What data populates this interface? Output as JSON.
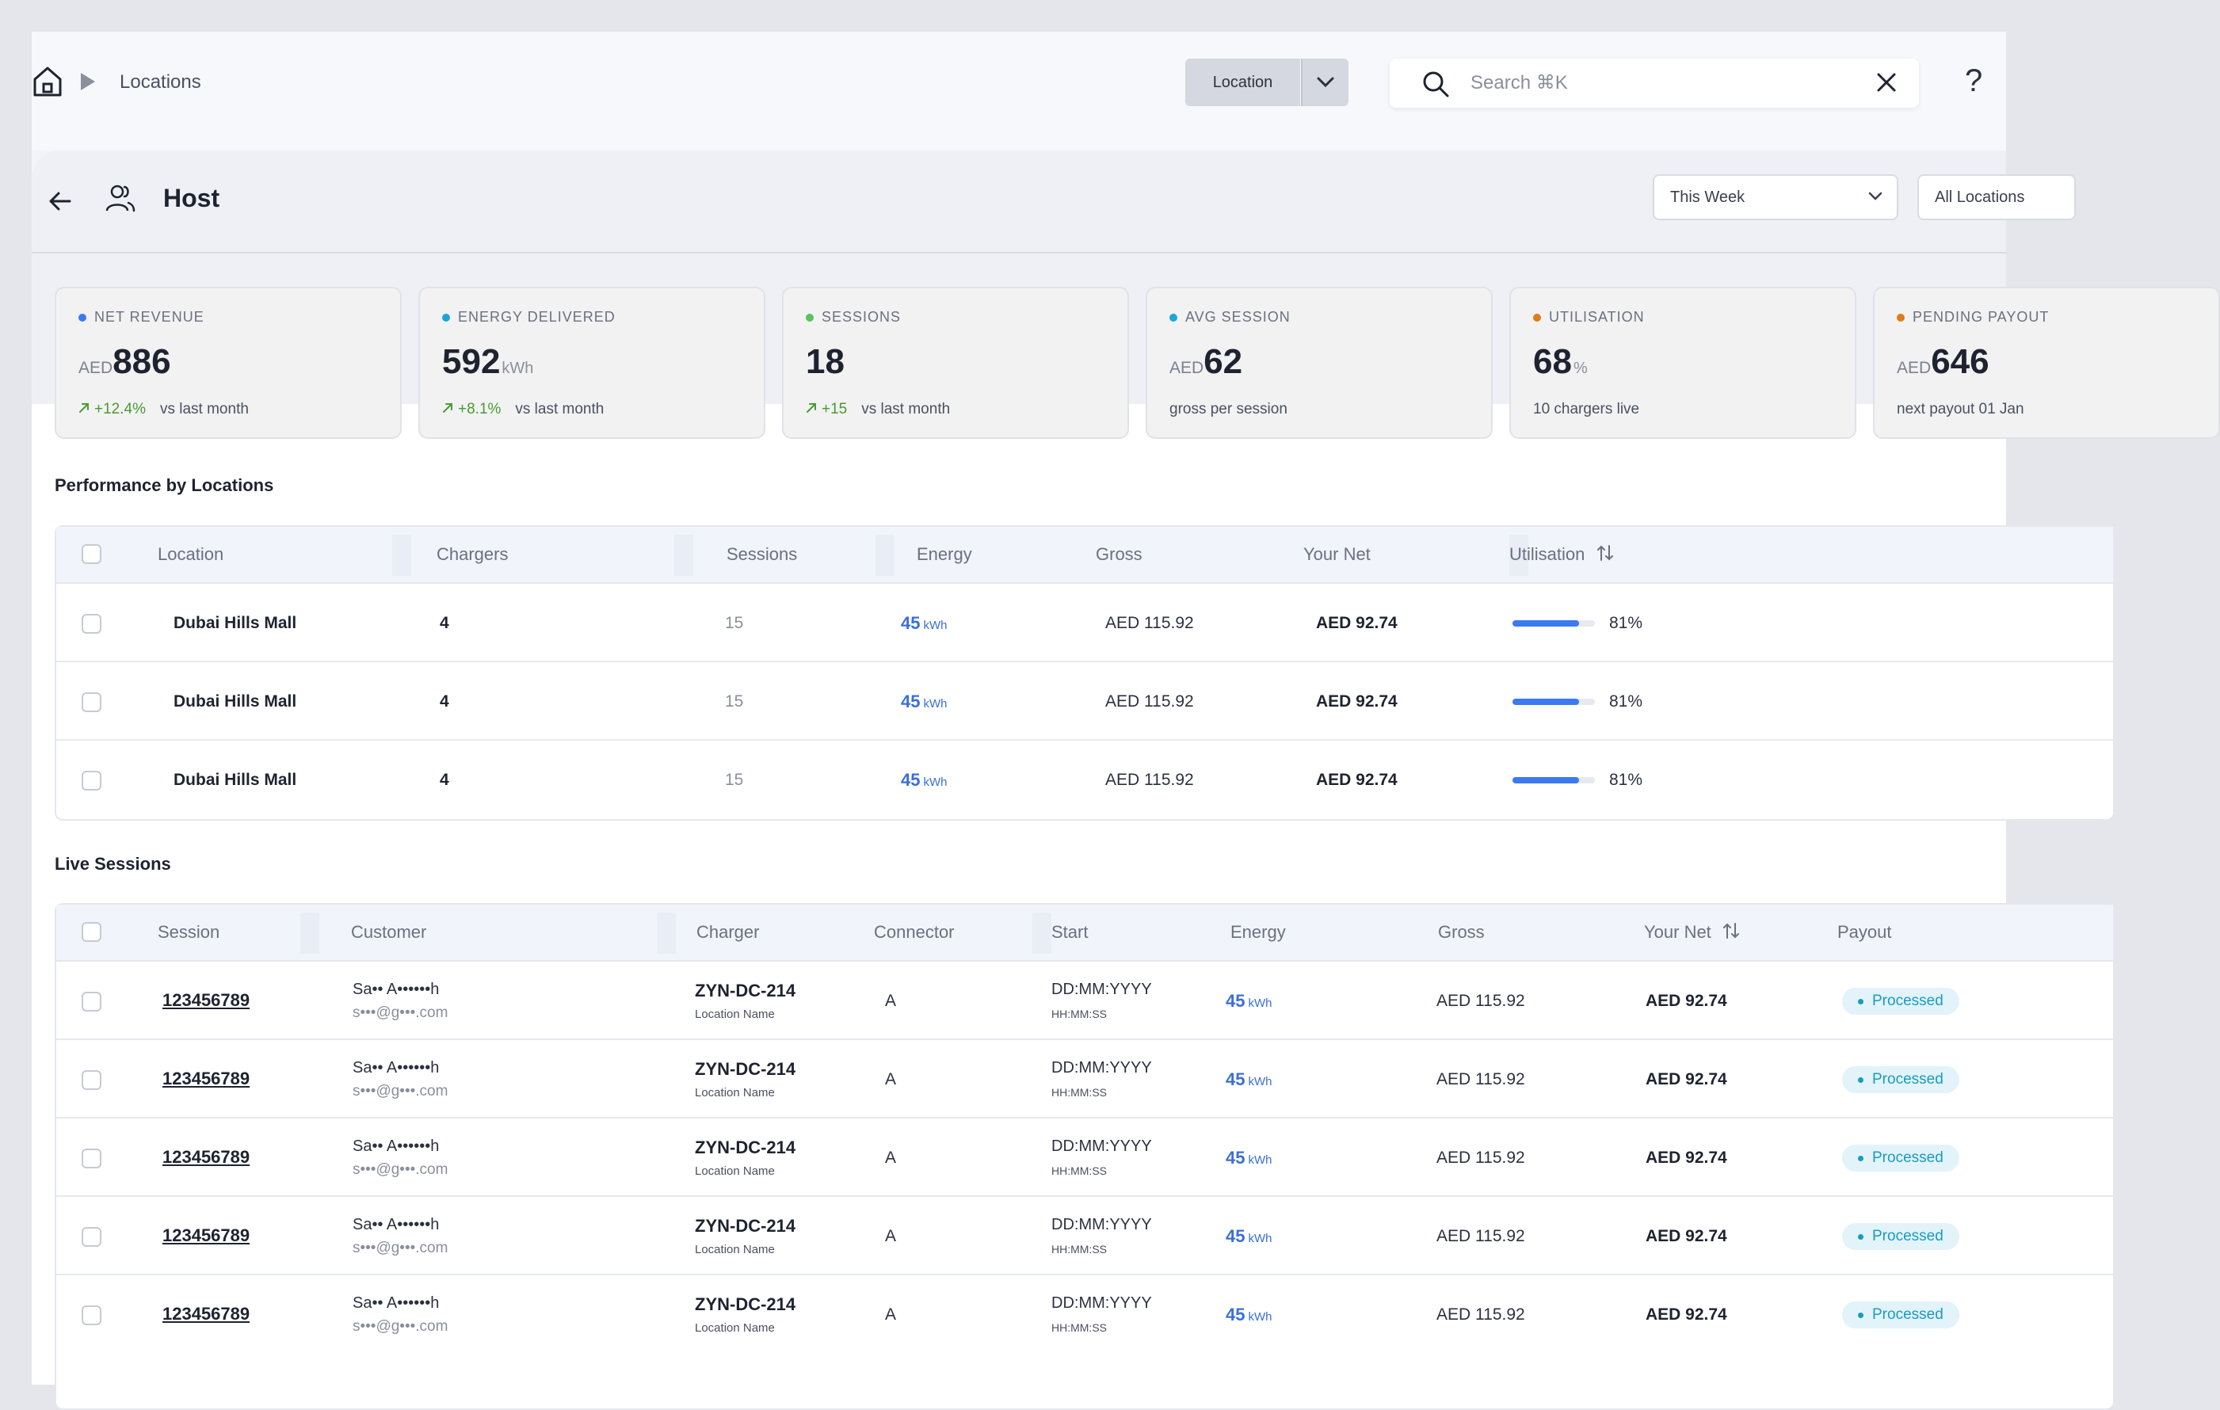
{
  "breadcrumb": {
    "current": "Locations"
  },
  "location_filter": {
    "label": "Location"
  },
  "search": {
    "placeholder": "Search ⌘K"
  },
  "help": {
    "label": "?"
  },
  "host": {
    "title": "Host",
    "period": "This Week",
    "locations_filter": "All Locations"
  },
  "cards": [
    {
      "label": "NET REVENUE",
      "dot": "#3b7af0",
      "prefix": "AED",
      "value": "886",
      "suffix": "",
      "delta": "+12.4%",
      "note": "vs last month"
    },
    {
      "label": "ENERGY DELIVERED",
      "dot": "#1aa7d6",
      "prefix": "",
      "value": "592",
      "suffix": "kWh",
      "delta": "+8.1%",
      "note": "vs last month"
    },
    {
      "label": "SESSIONS",
      "dot": "#5cc25a",
      "prefix": "",
      "value": "18",
      "suffix": "",
      "delta": "+15",
      "note": "vs last month"
    },
    {
      "label": "AVG SESSION",
      "dot": "#1aa7d6",
      "prefix": "AED",
      "value": "62",
      "suffix": "",
      "delta": "",
      "note": "gross per session"
    },
    {
      "label": "UTILISATION",
      "dot": "#e07a1a",
      "prefix": "",
      "value": "68",
      "suffix": "%",
      "delta": "",
      "note": "10 chargers live"
    },
    {
      "label": "PENDING PAYOUT",
      "dot": "#e07a1a",
      "prefix": "AED",
      "value": "646",
      "suffix": "",
      "delta": "",
      "note": "next payout 01 Jan"
    }
  ],
  "performance": {
    "title": "Performance by Locations",
    "columns": [
      "Location",
      "Chargers",
      "Sessions",
      "Energy",
      "Gross",
      "Your Net",
      "Utilisation"
    ],
    "rows": [
      {
        "location": "Dubai Hills Mall",
        "chargers": "4",
        "sessions": "15",
        "energy": "45",
        "energy_unit": "kWh",
        "gross": "AED 115.92",
        "net": "AED 92.74",
        "utilisation_pct": 81,
        "utilisation": "81%"
      },
      {
        "location": "Dubai Hills Mall",
        "chargers": "4",
        "sessions": "15",
        "energy": "45",
        "energy_unit": "kWh",
        "gross": "AED 115.92",
        "net": "AED 92.74",
        "utilisation_pct": 81,
        "utilisation": "81%"
      },
      {
        "location": "Dubai Hills Mall",
        "chargers": "4",
        "sessions": "15",
        "energy": "45",
        "energy_unit": "kWh",
        "gross": "AED 115.92",
        "net": "AED 92.74",
        "utilisation_pct": 81,
        "utilisation": "81%"
      }
    ]
  },
  "live": {
    "title": "Live Sessions",
    "columns": [
      "Session",
      "Customer",
      "Charger",
      "Connector",
      "Start",
      "Energy",
      "Gross",
      "Your Net",
      "Payout"
    ],
    "rows": [
      {
        "session": "123456789",
        "name": "Sa•• A••••••h",
        "email": "s•••@g•••.com",
        "charger": "ZYN-DC-214",
        "charger_loc": "Location Name",
        "connector": "A",
        "date": "DD:MM:YYYY",
        "time": "HH:MM:SS",
        "energy": "45",
        "energy_unit": "kWh",
        "gross": "AED 115.92",
        "net": "AED 92.74",
        "payout": "Processed"
      },
      {
        "session": "123456789",
        "name": "Sa•• A••••••h",
        "email": "s•••@g•••.com",
        "charger": "ZYN-DC-214",
        "charger_loc": "Location Name",
        "connector": "A",
        "date": "DD:MM:YYYY",
        "time": "HH:MM:SS",
        "energy": "45",
        "energy_unit": "kWh",
        "gross": "AED 115.92",
        "net": "AED 92.74",
        "payout": "Processed"
      },
      {
        "session": "123456789",
        "name": "Sa•• A••••••h",
        "email": "s•••@g•••.com",
        "charger": "ZYN-DC-214",
        "charger_loc": "Location Name",
        "connector": "A",
        "date": "DD:MM:YYYY",
        "time": "HH:MM:SS",
        "energy": "45",
        "energy_unit": "kWh",
        "gross": "AED 115.92",
        "net": "AED 92.74",
        "payout": "Processed"
      },
      {
        "session": "123456789",
        "name": "Sa•• A••••••h",
        "email": "s•••@g•••.com",
        "charger": "ZYN-DC-214",
        "charger_loc": "Location Name",
        "connector": "A",
        "date": "DD:MM:YYYY",
        "time": "HH:MM:SS",
        "energy": "45",
        "energy_unit": "kWh",
        "gross": "AED 115.92",
        "net": "AED 92.74",
        "payout": "Processed"
      },
      {
        "session": "123456789",
        "name": "Sa•• A••••••h",
        "email": "s•••@g•••.com",
        "charger": "ZYN-DC-214",
        "charger_loc": "Location Name",
        "connector": "A",
        "date": "DD:MM:YYYY",
        "time": "HH:MM:SS",
        "energy": "45",
        "energy_unit": "kWh",
        "gross": "AED 115.92",
        "net": "AED 92.74",
        "payout": "Processed"
      }
    ]
  }
}
